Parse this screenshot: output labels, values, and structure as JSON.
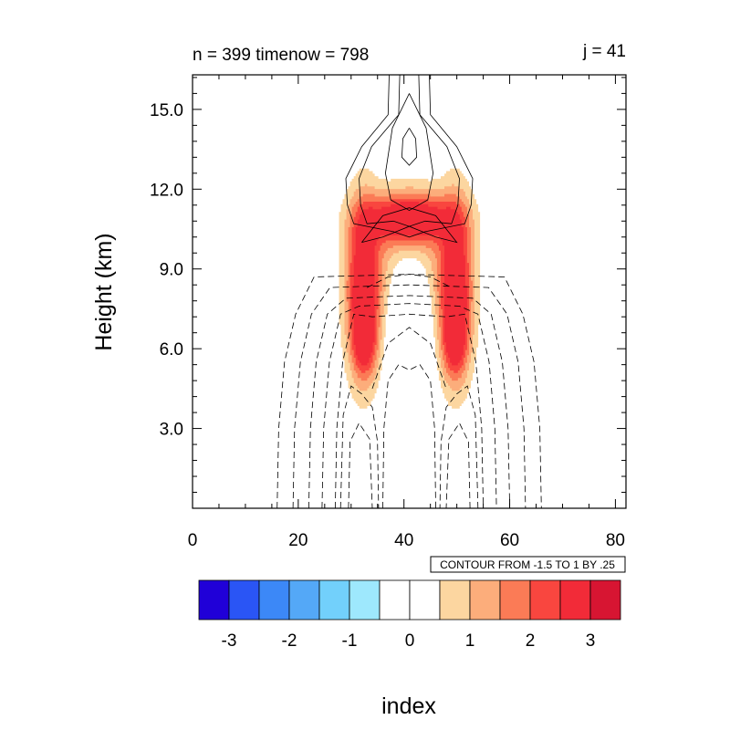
{
  "chart_data": {
    "type": "contour",
    "title_left": "n = 399 timenow = 798",
    "title_right": "j = 41",
    "xlabel": "index",
    "ylabel": "Height (km)",
    "xlim": [
      0,
      82
    ],
    "ylim": [
      0,
      16.3
    ],
    "x_ticks": [
      0,
      20,
      40,
      60,
      80
    ],
    "y_ticks": [
      3.0,
      6.0,
      9.0,
      12.0,
      15.0
    ],
    "x_tick_labels": [
      "0",
      "20",
      "40",
      "60",
      "80"
    ],
    "y_tick_labels": [
      "3.0",
      "6.0",
      "9.0",
      "12.0",
      "15.0"
    ],
    "contour_info": "CONTOUR FROM -1.5 TO 1 BY .25",
    "colorbar": {
      "colors": [
        "#2000d8",
        "#2a55f5",
        "#3c88f7",
        "#54a8f7",
        "#72d0fb",
        "#9ee8fd",
        "#ffffff",
        "#ffffff",
        "#fcd6a0",
        "#fcad7b",
        "#fb7b56",
        "#f9463f",
        "#f22b38",
        "#d71532"
      ],
      "labels": [
        "-3",
        "-2",
        "-1",
        "0",
        "1",
        "2",
        "3"
      ],
      "label_values": [
        -3,
        -2,
        -1,
        0,
        1,
        2,
        3
      ]
    },
    "shaded_levels": [
      {
        "value": 0.5,
        "color": "#fcd6a0"
      },
      {
        "value": 1.0,
        "color": "#fcad7b"
      },
      {
        "value": 1.5,
        "color": "#fb7b56"
      },
      {
        "value": 2.0,
        "color": "#f9463f"
      },
      {
        "value": 2.5,
        "color": "#f22b38"
      }
    ]
  }
}
